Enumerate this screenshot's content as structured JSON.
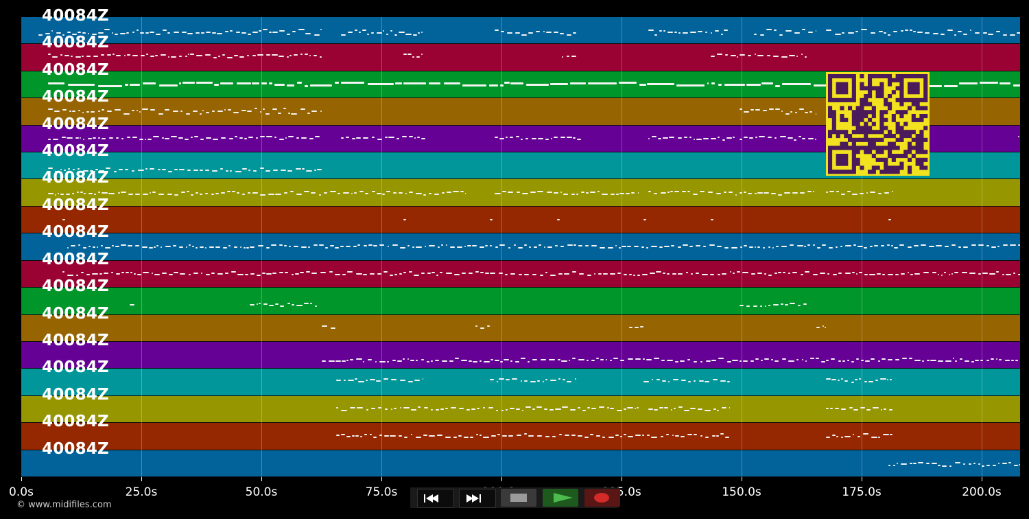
{
  "tracks": [
    {
      "label": "40084Z",
      "color": "#01639a"
    },
    {
      "label": "40084Z",
      "color": "#9a0233"
    },
    {
      "label": "40084Z",
      "color": "#01962a"
    },
    {
      "label": "40084Z",
      "color": "#966401"
    },
    {
      "label": "40084Z",
      "color": "#650194"
    },
    {
      "label": "40084Z",
      "color": "#01979a"
    },
    {
      "label": "40084Z",
      "color": "#969601"
    },
    {
      "label": "40084Z",
      "color": "#962801"
    },
    {
      "label": "40084Z",
      "color": "#01639a"
    },
    {
      "label": "40084Z",
      "color": "#9a0233"
    },
    {
      "label": "40084Z",
      "color": "#01962a"
    },
    {
      "label": "40084Z",
      "color": "#966401"
    },
    {
      "label": "40084Z",
      "color": "#650194"
    },
    {
      "label": "40084Z",
      "color": "#01979a"
    },
    {
      "label": "40084Z",
      "color": "#969601"
    },
    {
      "label": "40084Z",
      "color": "#962801"
    },
    {
      "label": "40084Z",
      "color": "#01639a"
    }
  ],
  "time_axis": {
    "ticks": [
      "0.0s",
      "25.0s",
      "50.0s",
      "75.0s",
      "100.0s",
      "125.0s",
      "150.0s",
      "175.0s",
      "200.0s"
    ],
    "tick_values": [
      0,
      25,
      50,
      75,
      100,
      125,
      150,
      175,
      200
    ],
    "max_seconds": 208
  },
  "controls": {
    "rewind_icon": "rewind-icon",
    "fast_forward_icon": "fast-forward-icon",
    "stop_icon": "stop-icon",
    "play_icon": "play-icon",
    "record_icon": "record-icon",
    "stop_color": "#9a9a9a",
    "play_color": "#4dbb4d",
    "record_color": "#d42a2a"
  },
  "qr_code": {
    "background": "#f2e21f",
    "foreground": "#4a1a5a"
  },
  "copyright": "© www.midifiles.com"
}
